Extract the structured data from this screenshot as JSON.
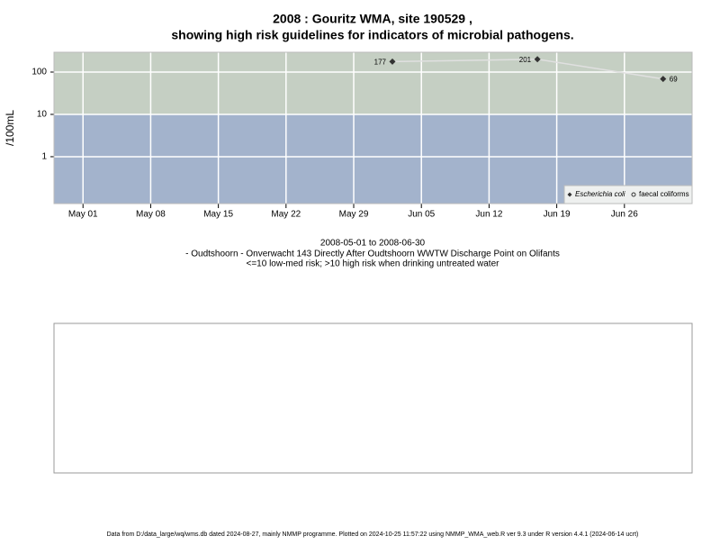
{
  "chart_data": {
    "type": "line",
    "title": "2008 : Gouritz WMA, site 190529 ,",
    "subtitle": "showing high risk guidelines for indicators of microbial pathogens.",
    "ylabel": "/100mL",
    "date_range": "2008-05-01 to 2008-06-30",
    "site": "- Oudtshoorn - Onverwacht 143 Directly After Oudtshoorn WWTW Discharge Point on Olifants",
    "risk_note": "<=10 low-med risk; >10 high risk when drinking untreated water",
    "footer": "Data from D:/data_large/wq/wms.db dated 2024-08-27, mainly NMMP programme. Plotted on 2024-10-25 11:57:22 using NMMP_WMA_web.R ver 9.3 under R version 4.4.1 (2024-06-14 ucrt)",
    "x": [
      "2008-06-02",
      "2008-06-17",
      "2008-06-30"
    ],
    "series": [
      {
        "name": "Escherichia coli",
        "color": "#333333",
        "line_color": "#e0e0e0",
        "values": [
          177,
          201,
          69
        ]
      },
      {
        "name": "faecal coliforms",
        "color": "#333333",
        "values": [
          null,
          null,
          null
        ]
      }
    ],
    "xlim": [
      "2008-04-28",
      "2008-07-03"
    ],
    "xticks": [
      {
        "value": "2008-05-01",
        "label": "May 01"
      },
      {
        "value": "2008-05-08",
        "label": "May 08"
      },
      {
        "value": "2008-05-15",
        "label": "May 15"
      },
      {
        "value": "2008-05-22",
        "label": "May 22"
      },
      {
        "value": "2008-05-29",
        "label": "May 29"
      },
      {
        "value": "2008-06-05",
        "label": "Jun 05"
      },
      {
        "value": "2008-06-12",
        "label": "Jun 12"
      },
      {
        "value": "2008-06-19",
        "label": "Jun 19"
      },
      {
        "value": "2008-06-26",
        "label": "Jun 26"
      }
    ],
    "ylim": [
      0.078,
      294
    ],
    "yticks": [
      1,
      10,
      100
    ],
    "log_y": true,
    "grid": true,
    "risk_threshold": 10,
    "high_risk_color": "#c5cfc3",
    "low_risk_color": "#a3b3cc",
    "legend": "lower right"
  }
}
